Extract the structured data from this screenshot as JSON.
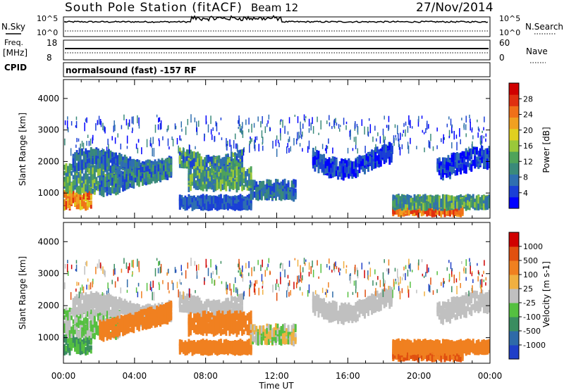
{
  "header": {
    "station": "South Pole Station (fitACF)",
    "beam": "Beam 12",
    "date": "27/Nov/2014"
  },
  "strip_labels": {
    "nsky": "N.Sky",
    "freq_line1": "Freq.",
    "freq_line2": "[MHz]",
    "cpid": "CPID",
    "nsearch": "N.Search",
    "nave": "Nave",
    "nsky_ticks": [
      "10^5",
      "10^0"
    ],
    "nsearch_ticks": [
      "10^5",
      "10^0"
    ],
    "freq_ticks": [
      "18",
      "8"
    ],
    "nave_ticks": [
      "60",
      "0"
    ],
    "cpid_text": "normalsound (fast) -157 RF"
  },
  "chart_data": [
    {
      "type": "heatmap",
      "name": "power",
      "ylabel": "Slant Range [km]",
      "xlabel": "",
      "x_ticks": [
        "00:00",
        "04:00",
        "08:00",
        "12:00",
        "16:00",
        "20:00",
        "00:00"
      ],
      "y_ticks": [
        "1000",
        "2000",
        "3000",
        "4000"
      ],
      "ylim": [
        200,
        4600
      ],
      "xlim_hours": [
        0,
        24
      ],
      "colorbar_label": "Power [dB]",
      "colorbar_ticks": [
        "4",
        "8",
        "12",
        "16",
        "20",
        "24",
        "28"
      ],
      "colorbar_colors": [
        "#0000ff",
        "#1a3fd6",
        "#2f6fb0",
        "#3a8a7a",
        "#4fa35a",
        "#9ac83a",
        "#e0d020",
        "#f0a020",
        "#f07018",
        "#e03010",
        "#d00000"
      ]
    },
    {
      "type": "heatmap",
      "name": "velocity",
      "ylabel": "Slant Range [km]",
      "xlabel": "Time UT",
      "x_ticks": [
        "00:00",
        "04:00",
        "08:00",
        "12:00",
        "16:00",
        "20:00",
        "00:00"
      ],
      "y_ticks": [
        "1000",
        "2000",
        "3000",
        "4000"
      ],
      "ylim": [
        200,
        4600
      ],
      "xlim_hours": [
        0,
        24
      ],
      "colorbar_label": "Velocity [m s-1]",
      "colorbar_ticks": [
        "1000",
        "500",
        "100",
        "25",
        "-25",
        "-100",
        "-500",
        "-1000"
      ],
      "colorbar_colors": [
        "#1f3fc8",
        "#2e6aa8",
        "#3a8d60",
        "#55c040",
        "#c0c0c0",
        "#f0b040",
        "#f08020",
        "#e05010",
        "#d00000"
      ]
    }
  ]
}
